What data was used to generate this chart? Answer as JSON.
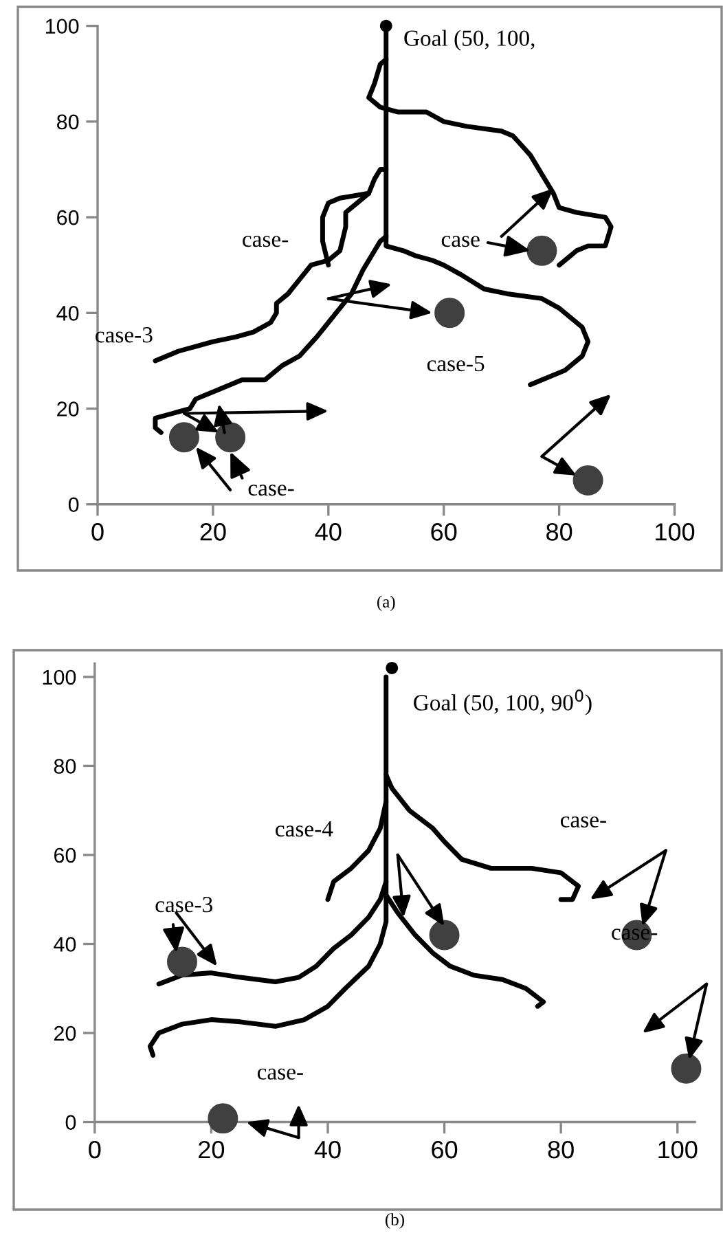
{
  "chart_data": [
    {
      "type": "line",
      "title": "(a)",
      "xlim": [
        0,
        100
      ],
      "ylim": [
        0,
        100
      ],
      "xticks": [
        0,
        20,
        40,
        60,
        80,
        100
      ],
      "yticks": [
        0,
        20,
        40,
        60,
        80,
        100
      ],
      "grid": false,
      "series": [
        {
          "color": "#000000",
          "x": [
            10,
            14,
            17,
            20,
            24,
            27,
            30,
            31,
            31,
            33,
            35,
            37,
            40,
            42,
            43,
            43,
            45,
            47,
            48,
            49,
            50
          ],
          "values": [
            30,
            32,
            33,
            34,
            35,
            36,
            38,
            40,
            42,
            44,
            47,
            50,
            51,
            53,
            58,
            61,
            63,
            65,
            68,
            70,
            70
          ]
        },
        {
          "color": "#000000",
          "x": [
            40,
            39,
            39,
            40,
            42,
            47
          ],
          "values": [
            50,
            55,
            60,
            63,
            64,
            65
          ]
        },
        {
          "color": "#000000",
          "x": [
            11,
            10,
            10,
            13,
            16,
            17,
            21,
            25,
            29,
            32,
            35,
            38,
            40,
            42,
            44,
            46,
            48,
            49,
            50
          ],
          "values": [
            15,
            16,
            18,
            19,
            20,
            22,
            24,
            26,
            26,
            29,
            31,
            35,
            38,
            41,
            44,
            49,
            53,
            55,
            56
          ]
        },
        {
          "color": "#000000",
          "x": [
            50,
            49,
            48,
            47,
            49,
            52,
            57,
            60,
            64,
            70,
            72,
            75,
            77,
            79,
            80,
            83,
            88,
            89,
            88,
            85,
            83,
            80
          ],
          "values": [
            93,
            92,
            88,
            85,
            83,
            82,
            82,
            80,
            79,
            78,
            77,
            73,
            69,
            65,
            62,
            61,
            60,
            58,
            54,
            54,
            53,
            50
          ]
        },
        {
          "color": "#000000",
          "x": [
            50,
            50,
            53,
            55,
            58,
            60,
            63,
            67,
            71,
            77,
            80,
            84,
            85,
            84,
            81,
            77,
            75
          ],
          "values": [
            100,
            54,
            53,
            52,
            51,
            50,
            48,
            45,
            44,
            43,
            41,
            37,
            34,
            31,
            28,
            26,
            25
          ]
        },
        {
          "type": "scatter",
          "marker": "circle",
          "color": "#000000",
          "x": [
            50
          ],
          "values": [
            100
          ]
        },
        {
          "type": "scatter",
          "marker": "circle",
          "color": "#404040",
          "x": [
            15,
            23,
            61,
            77,
            85
          ],
          "values": [
            14,
            14,
            40,
            53,
            5
          ]
        }
      ],
      "annotations": [
        "Goal (50, 100,",
        "case-",
        "case-3",
        {
          "text": "case",
          "x": 75,
          "y": 53
        },
        "case-5",
        {
          "text": "case-",
          "x": 23,
          "y": 11
        }
      ]
    },
    {
      "type": "line",
      "title": "(b)",
      "xlim": [
        0,
        103
      ],
      "ylim": [
        0,
        103
      ],
      "xticks": [
        0,
        20,
        40,
        60,
        80,
        100
      ],
      "yticks": [
        0,
        20,
        40,
        60,
        80,
        100
      ],
      "grid": false,
      "series": [
        {
          "color": "#000000",
          "x": [
            40,
            41,
            44,
            47,
            49,
            50
          ],
          "values": [
            50,
            54,
            57,
            61,
            66,
            72
          ]
        },
        {
          "color": "#000000",
          "x": [
            11,
            15,
            20,
            25,
            31,
            35,
            38,
            41,
            44,
            47,
            49,
            50
          ],
          "values": [
            31,
            33,
            33.5,
            32.5,
            31.5,
            32.5,
            35,
            39,
            42,
            46,
            50,
            54
          ]
        },
        {
          "color": "#000000",
          "x": [
            10,
            9.5,
            11,
            15,
            20,
            25,
            31,
            36,
            40,
            43,
            47,
            49,
            50,
            50
          ],
          "values": [
            15,
            17,
            20,
            22,
            23,
            22.5,
            21.5,
            23,
            26,
            30,
            35,
            40,
            45,
            100
          ]
        },
        {
          "color": "#000000",
          "x": [
            50,
            51,
            54,
            58,
            60,
            63,
            68,
            75,
            80,
            83,
            82,
            80
          ],
          "values": [
            78,
            75,
            70,
            66,
            63,
            59,
            57,
            57,
            56,
            53,
            50,
            50
          ]
        },
        {
          "color": "#000000",
          "x": [
            50,
            52,
            55,
            58,
            61,
            65,
            70,
            74,
            77,
            76
          ],
          "values": [
            51,
            47,
            42,
            38,
            35,
            33,
            32,
            30,
            27,
            26
          ]
        },
        {
          "type": "scatter",
          "marker": "circle",
          "color": "#000000",
          "x": [
            51
          ],
          "values": [
            102
          ]
        },
        {
          "type": "scatter",
          "marker": "circle",
          "color": "#404040",
          "x": [
            15,
            22,
            60,
            93,
            101.5
          ],
          "values": [
            36,
            0.8,
            42,
            42,
            12
          ]
        }
      ],
      "annotations": [
        "Goal (50, 100, 90$^{0}$)",
        "case-4",
        {
          "text": "case-3",
          "x": 14,
          "y": 38
        },
        "case-",
        "case-",
        "case-"
      ]
    }
  ]
}
